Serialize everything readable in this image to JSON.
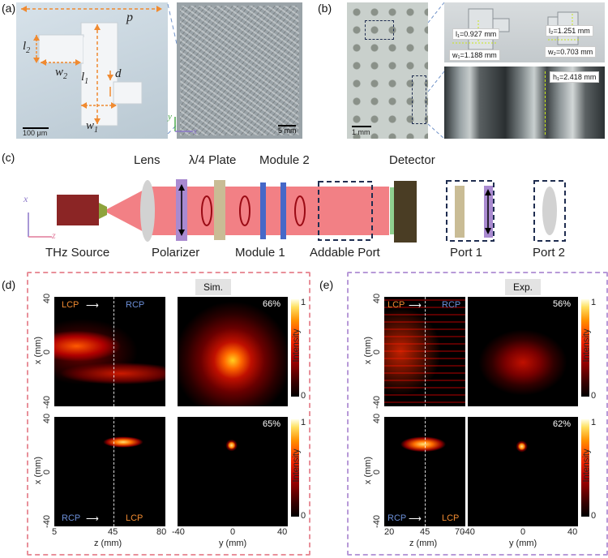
{
  "panels": {
    "a": "(a)",
    "b": "(b)",
    "c": "(c)",
    "d": "(d)",
    "e": "(e)"
  },
  "panel_a": {
    "p": "p",
    "l1": "l",
    "l1_sub": "1",
    "l2": "l",
    "l2_sub": "2",
    "w1": "w",
    "w1_sub": "1",
    "w2": "w",
    "w2_sub": "2",
    "d": "d",
    "scale_left": "100 μm",
    "scale_right": "5 mm",
    "axis_y": "y",
    "axis_x": "x"
  },
  "panel_b": {
    "l1": "l₁=0.927 mm",
    "w1": "w₁=1.188 mm",
    "l2": "l₂=1.251 mm",
    "w2": "w₂=0.703 mm",
    "h1": "h₁=2.418 mm",
    "scale": "1 mm"
  },
  "panel_c": {
    "lens": "Lens",
    "plate": "λ/4 Plate",
    "module2": "Module 2",
    "detector": "Detector",
    "axis_x": "x",
    "axis_z": "z",
    "source": "THz Source",
    "polarizer": "Polarizer",
    "module1": "Module 1",
    "addable": "Addable Port",
    "port1": "Port 1",
    "port2": "Port 2"
  },
  "panel_d": {
    "tag": "Sim.",
    "top_lcp": "LCP",
    "top_rcp": "RCP",
    "bot_rcp": "RCP",
    "bot_lcp": "LCP",
    "pct_top": "66%",
    "pct_bot": "65%",
    "xlabel_left": "z (mm)",
    "xlabel_right": "y (mm)",
    "ylabel": "x (mm)",
    "xticks_left": [
      "5",
      "45",
      "80"
    ],
    "xticks_right": [
      "-40",
      "0",
      "40"
    ],
    "yticks": [
      "40",
      "0",
      "-40"
    ],
    "cbar_label": "Intensity",
    "cbar_ticks": [
      "1",
      "0"
    ]
  },
  "panel_e": {
    "tag": "Exp.",
    "top_lcp": "LCP",
    "top_rcp": "RCP",
    "bot_rcp": "RCP",
    "bot_lcp": "LCP",
    "pct_top": "56%",
    "pct_bot": "62%",
    "xlabel_left": "z (mm)",
    "xlabel_right": "y (mm)",
    "ylabel": "x (mm)",
    "xticks_left": [
      "20",
      "45",
      "70"
    ],
    "xticks_right": [
      "-40",
      "0",
      "40"
    ],
    "yticks": [
      "40",
      "0",
      "-40"
    ],
    "cbar_label": "Intensity",
    "cbar_ticks": [
      "1",
      "0"
    ]
  },
  "colors": {
    "beam": "#f06a70",
    "source": "#8b2525",
    "polarizer": "#a98ad0",
    "plate": "#c9bc95",
    "module": "#4668c8",
    "detector": "#4a3d24",
    "dash_blue": "#1f2d50",
    "box_d": "#e8909a",
    "box_e": "#b89ad8",
    "orange": "#f08a30",
    "rcp_blue": "#6c8fd8",
    "lcp_orange": "#f08a30"
  }
}
